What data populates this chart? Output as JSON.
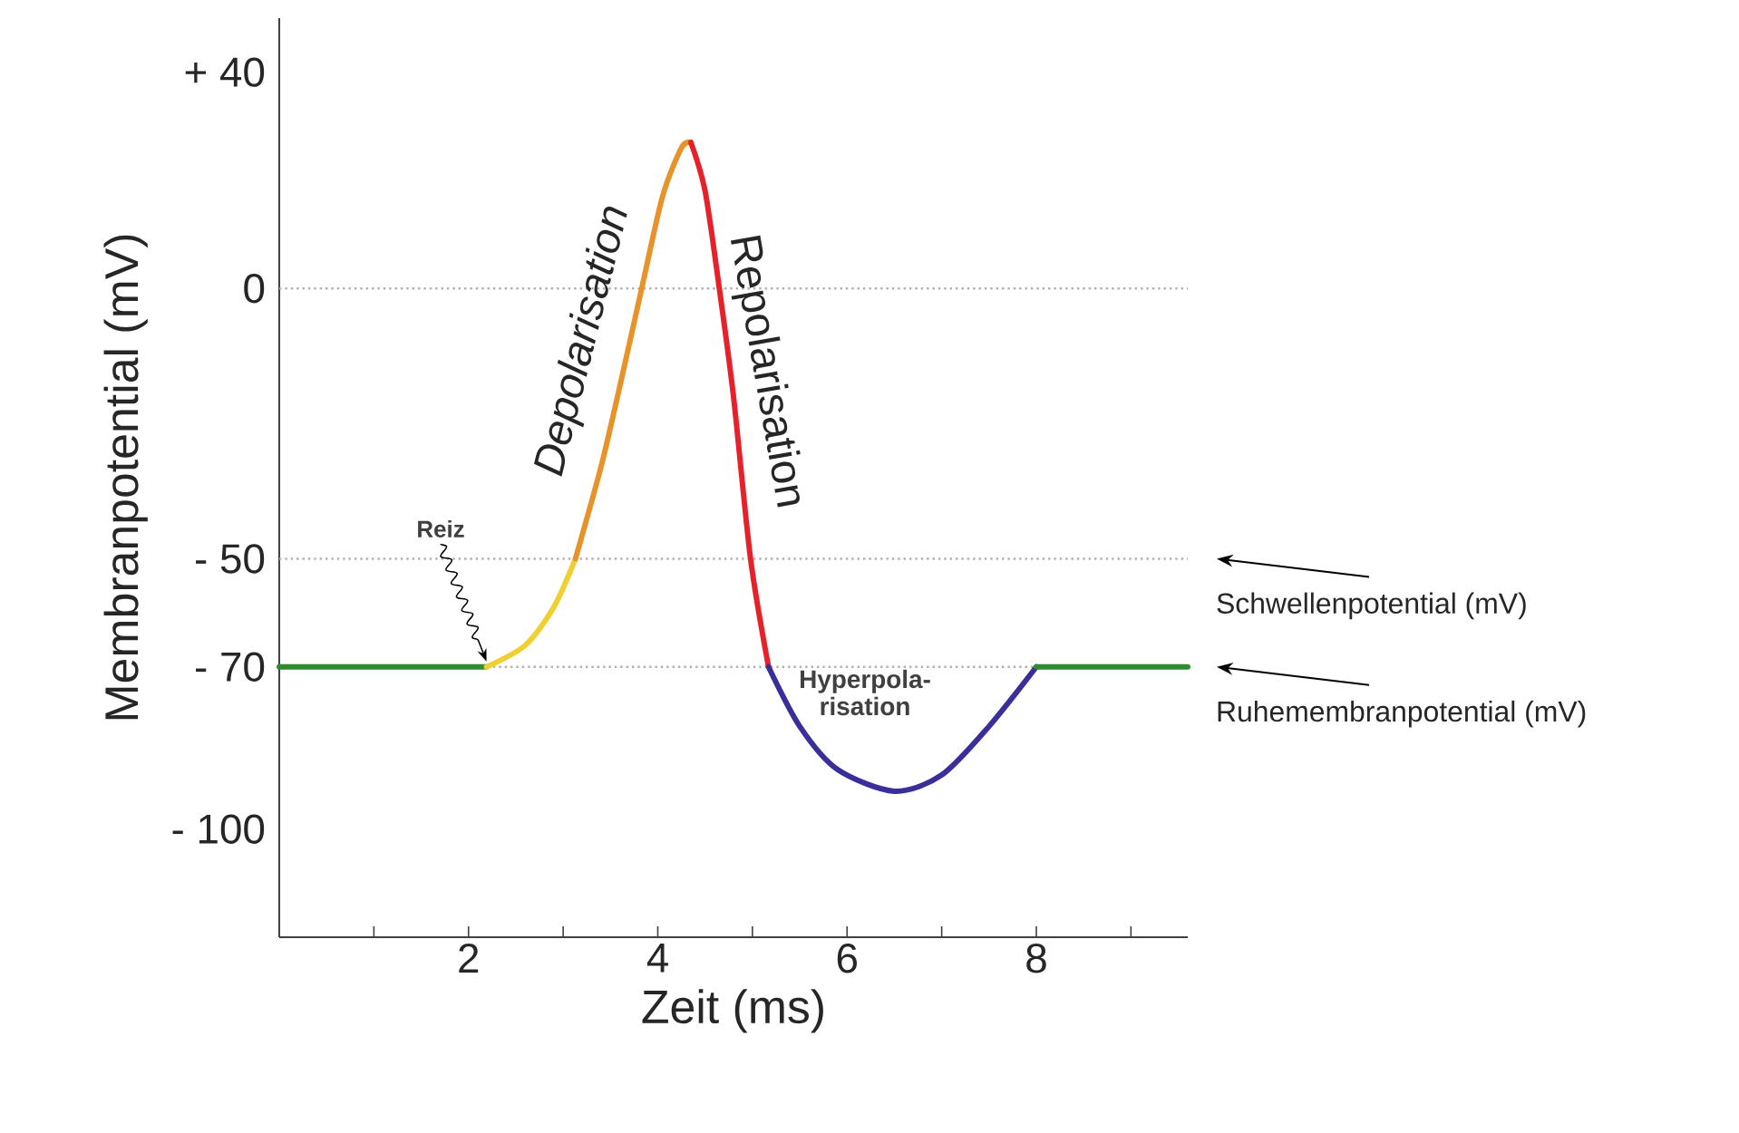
{
  "chart_data": {
    "type": "line",
    "xlabel": "Zeit (ms)",
    "ylabel": "Membranpotential (mV)",
    "xlim": [
      0,
      9.6
    ],
    "ylim": [
      -120,
      50
    ],
    "xticks": [
      {
        "value": 1,
        "label": null
      },
      2,
      {
        "value": 3,
        "label": null
      },
      4,
      {
        "value": 5,
        "label": null
      },
      6,
      {
        "value": 7,
        "label": null
      },
      8,
      {
        "value": 9,
        "label": null
      }
    ],
    "yticks": [
      {
        "value": 40,
        "label": "+ 40"
      },
      0,
      {
        "value": -50,
        "label": "- 50"
      },
      {
        "value": -70,
        "label": "- 70"
      },
      {
        "value": -100,
        "label": "- 100"
      }
    ],
    "ref_lines": [
      {
        "axis": "y",
        "value": 0,
        "color": "#b0b0b0",
        "line_style": "dotted"
      },
      {
        "axis": "y",
        "value": -50,
        "label": "Schwellenpotential (mV)",
        "color": "#b0b0b0",
        "line_style": "dotted"
      },
      {
        "axis": "y",
        "value": -70,
        "label": "Ruhemembranpotential (mV)",
        "color": "#b0b0b0",
        "line_style": "dotted"
      }
    ],
    "series": [
      {
        "color": "#2e8b2e",
        "x": [
          0,
          2.19
        ],
        "values": [
          -70,
          -70
        ]
      },
      {
        "color": "#f0d030",
        "x": [
          2.19,
          2.6,
          2.9,
          3.13
        ],
        "values": [
          -70,
          -66,
          -59,
          -50
        ]
      },
      {
        "color": "#e8922a",
        "x": [
          3.13,
          3.4,
          3.6,
          3.83,
          4.05,
          4.25,
          4.35
        ],
        "values": [
          -50,
          -33,
          -18,
          0,
          17,
          26,
          27
        ]
      },
      {
        "color": "#e8202a",
        "x": [
          4.35,
          4.5,
          4.65,
          4.8,
          4.98,
          5.17
        ],
        "values": [
          27,
          18,
          0,
          -20,
          -50,
          -70
        ]
      },
      {
        "color": "#3a2f9a",
        "x": [
          5.17,
          5.5,
          5.9,
          6.5,
          7.0,
          7.5,
          8.0
        ],
        "values": [
          -70,
          -81,
          -89,
          -93,
          -90,
          -81,
          -70
        ]
      },
      {
        "color": "#2e8b2e",
        "x": [
          8.0,
          9.6
        ],
        "values": [
          -70,
          -70
        ]
      }
    ],
    "annotations": [
      "Reiz",
      "Depolarisation",
      "Repolarisation",
      "Hyperpola-risation"
    ],
    "grid": false,
    "marker": "none",
    "line_style": "solid"
  }
}
